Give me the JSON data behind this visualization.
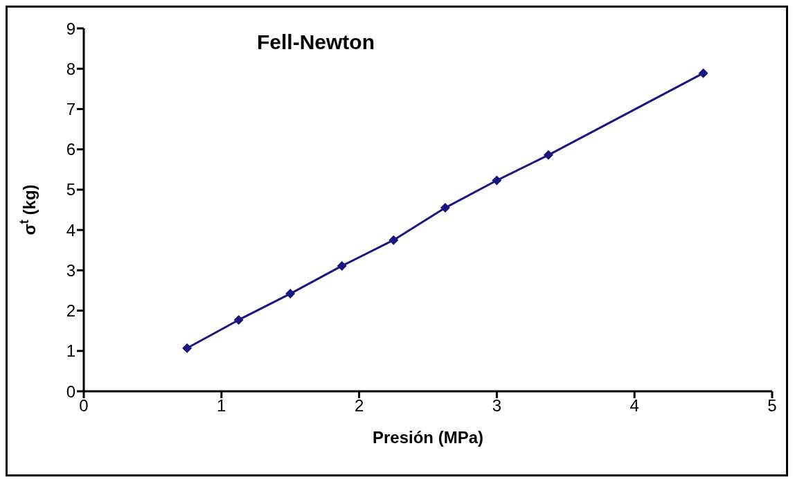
{
  "chart_data": {
    "type": "line",
    "title": "Fell-Newton",
    "xlabel": "Presión (MPa)",
    "ylabel": "σ$^{t}$ (kg)",
    "x": [
      0.75,
      1.125,
      1.5,
      1.875,
      2.25,
      2.625,
      3.0,
      3.375,
      4.5
    ],
    "series": [
      {
        "color": "#1a1580",
        "values": [
          1.07,
          1.77,
          2.42,
          3.11,
          3.75,
          4.55,
          5.23,
          5.86,
          7.89
        ]
      }
    ],
    "xlim": [
      0,
      5
    ],
    "xticks": [
      0,
      1,
      2,
      3,
      4,
      5
    ],
    "ylim": [
      0,
      9
    ],
    "yticks": [
      0,
      1,
      2,
      3,
      4,
      5,
      6,
      7,
      8,
      9
    ],
    "grid": false,
    "legend": false,
    "marker": "diamond",
    "line_style": "solid"
  }
}
